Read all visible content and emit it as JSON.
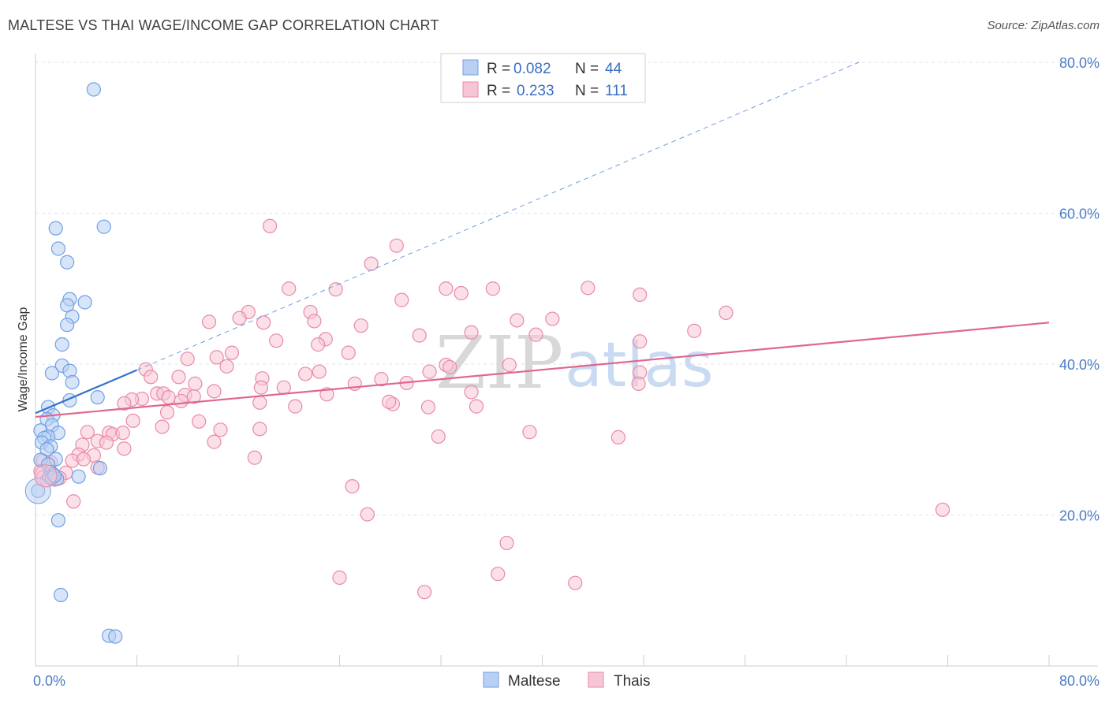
{
  "header": {
    "title": "MALTESE VS THAI WAGE/INCOME GAP CORRELATION CHART",
    "source": "Source: ZipAtlas.com"
  },
  "watermark": {
    "zip": "ZIP",
    "atlas": "atlas"
  },
  "chart_data": {
    "type": "scatter",
    "ylabel": "Wage/Income Gap",
    "xlim": [
      0,
      80
    ],
    "ylim": [
      0,
      80
    ],
    "x_tick_labels": [
      "0.0%",
      "80.0%"
    ],
    "y_ticks": [
      20,
      40,
      60,
      80
    ],
    "y_tick_labels": [
      "20.0%",
      "40.0%",
      "60.0%",
      "80.0%"
    ],
    "grid": true,
    "legend": {
      "placement": "top-center",
      "rows": [
        {
          "r_label": "R =",
          "r_value": "0.082",
          "n_label": "N =",
          "n_value": "44"
        },
        {
          "r_label": "R =",
          "r_value": "0.233",
          "n_label": "N =",
          "n_value": "111"
        }
      ]
    },
    "series": [
      {
        "name": "Maltese",
        "color": "#6fa0e6",
        "fill": "#b8d0f2",
        "trend": {
          "x1": 0,
          "y1": 33.5,
          "x2": 8,
          "y2": 39.2,
          "color": "#3470cc"
        },
        "trend_ext": {
          "x1": 8,
          "y1": 39.2,
          "x2": 65,
          "y2": 80,
          "color": "#6f9fe0"
        },
        "points": [
          [
            4.6,
            76.4
          ],
          [
            1.6,
            58
          ],
          [
            5.4,
            58.2
          ],
          [
            1.8,
            55.3
          ],
          [
            2.5,
            53.5
          ],
          [
            2.7,
            48.6
          ],
          [
            3.9,
            48.2
          ],
          [
            2.5,
            47.8
          ],
          [
            2.9,
            46.3
          ],
          [
            2.5,
            45.2
          ],
          [
            2.1,
            42.6
          ],
          [
            2.1,
            39.8
          ],
          [
            2.7,
            39.1
          ],
          [
            1.3,
            38.8
          ],
          [
            2.9,
            37.6
          ],
          [
            4.9,
            35.6
          ],
          [
            2.7,
            35.2
          ],
          [
            1.0,
            34.3
          ],
          [
            1.4,
            33.2
          ],
          [
            0.9,
            32.7
          ],
          [
            1.3,
            31.9
          ],
          [
            0.4,
            31.2
          ],
          [
            1.8,
            30.9
          ],
          [
            1.0,
            30.4
          ],
          [
            0.7,
            30.2
          ],
          [
            0.5,
            29.6
          ],
          [
            1.2,
            29.1
          ],
          [
            0.9,
            28.7
          ],
          [
            0.4,
            27.3
          ],
          [
            1.6,
            27.4
          ],
          [
            1.0,
            26.7
          ],
          [
            5.1,
            26.2
          ],
          [
            1.2,
            25.7
          ],
          [
            1.4,
            25.4
          ],
          [
            3.4,
            25.1
          ],
          [
            1.1,
            25.0
          ],
          [
            1.3,
            24.9
          ],
          [
            1.7,
            24.8
          ],
          [
            0.2,
            23.2
          ],
          [
            1.8,
            19.3
          ],
          [
            2.0,
            9.4
          ],
          [
            5.8,
            4.0
          ],
          [
            6.3,
            3.9
          ],
          [
            1.5,
            25.2
          ]
        ]
      },
      {
        "name": "Thais",
        "color": "#e88aa8",
        "fill": "#f7c6d6",
        "trend": {
          "x1": 0,
          "y1": 33.0,
          "x2": 80,
          "y2": 45.5,
          "color": "#e06790"
        },
        "points": [
          [
            18.5,
            58.3
          ],
          [
            28.5,
            55.7
          ],
          [
            26.5,
            53.3
          ],
          [
            20.0,
            50.0
          ],
          [
            23.7,
            49.9
          ],
          [
            32.4,
            50.0
          ],
          [
            36.1,
            50.0
          ],
          [
            43.6,
            50.1
          ],
          [
            33.6,
            49.4
          ],
          [
            28.9,
            48.5
          ],
          [
            47.7,
            49.2
          ],
          [
            16.8,
            46.9
          ],
          [
            21.7,
            46.9
          ],
          [
            16.1,
            46.1
          ],
          [
            22.0,
            45.7
          ],
          [
            18.0,
            45.5
          ],
          [
            13.7,
            45.6
          ],
          [
            25.7,
            45.1
          ],
          [
            38.0,
            45.8
          ],
          [
            40.8,
            46.0
          ],
          [
            54.5,
            46.8
          ],
          [
            34.4,
            44.2
          ],
          [
            30.3,
            43.8
          ],
          [
            39.5,
            43.9
          ],
          [
            52.0,
            44.4
          ],
          [
            19.0,
            43.1
          ],
          [
            22.9,
            43.3
          ],
          [
            22.3,
            42.6
          ],
          [
            15.5,
            41.5
          ],
          [
            14.3,
            40.9
          ],
          [
            24.7,
            41.5
          ],
          [
            12.0,
            40.7
          ],
          [
            15.1,
            39.7
          ],
          [
            32.4,
            39.9
          ],
          [
            32.7,
            39.6
          ],
          [
            37.4,
            39.9
          ],
          [
            22.4,
            39.0
          ],
          [
            31.1,
            39.0
          ],
          [
            47.7,
            43.0
          ],
          [
            8.7,
            39.3
          ],
          [
            9.1,
            38.3
          ],
          [
            11.3,
            38.3
          ],
          [
            17.9,
            38.1
          ],
          [
            21.3,
            38.7
          ],
          [
            27.3,
            38.0
          ],
          [
            29.3,
            37.5
          ],
          [
            25.2,
            37.4
          ],
          [
            47.7,
            38.9
          ],
          [
            47.6,
            37.4
          ],
          [
            12.6,
            37.4
          ],
          [
            17.8,
            36.9
          ],
          [
            19.6,
            36.9
          ],
          [
            14.1,
            36.4
          ],
          [
            9.6,
            36.1
          ],
          [
            10.1,
            36.1
          ],
          [
            11.8,
            35.9
          ],
          [
            8.4,
            35.4
          ],
          [
            7.6,
            35.3
          ],
          [
            12.5,
            35.7
          ],
          [
            10.5,
            35.6
          ],
          [
            23.0,
            36.0
          ],
          [
            34.4,
            36.3
          ],
          [
            11.5,
            35.1
          ],
          [
            7.0,
            34.8
          ],
          [
            17.7,
            34.9
          ],
          [
            28.2,
            34.7
          ],
          [
            20.5,
            34.4
          ],
          [
            27.9,
            35.0
          ],
          [
            34.8,
            34.4
          ],
          [
            31.0,
            34.3
          ],
          [
            10.4,
            33.6
          ],
          [
            12.9,
            32.4
          ],
          [
            7.7,
            32.5
          ],
          [
            10.0,
            31.7
          ],
          [
            14.6,
            31.3
          ],
          [
            17.7,
            31.4
          ],
          [
            5.8,
            30.9
          ],
          [
            6.1,
            30.7
          ],
          [
            4.1,
            31.0
          ],
          [
            6.9,
            30.9
          ],
          [
            4.9,
            29.8
          ],
          [
            5.6,
            29.6
          ],
          [
            3.7,
            29.3
          ],
          [
            39.0,
            31.0
          ],
          [
            46.0,
            30.3
          ],
          [
            31.8,
            30.4
          ],
          [
            14.1,
            29.7
          ],
          [
            7.0,
            28.8
          ],
          [
            3.4,
            28.0
          ],
          [
            4.6,
            27.9
          ],
          [
            2.9,
            27.2
          ],
          [
            3.8,
            27.4
          ],
          [
            17.3,
            27.6
          ],
          [
            0.6,
            27.2
          ],
          [
            1.2,
            27.0
          ],
          [
            4.9,
            26.3
          ],
          [
            0.4,
            25.8
          ],
          [
            2.4,
            25.6
          ],
          [
            0.6,
            25.0
          ],
          [
            0.9,
            24.6
          ],
          [
            1.5,
            24.7
          ],
          [
            1.9,
            24.9
          ],
          [
            25.0,
            23.8
          ],
          [
            3.0,
            21.8
          ],
          [
            71.6,
            20.7
          ],
          [
            26.2,
            20.1
          ],
          [
            37.2,
            16.3
          ],
          [
            24.0,
            11.7
          ],
          [
            36.5,
            12.2
          ],
          [
            42.6,
            11.0
          ],
          [
            30.7,
            9.8
          ]
        ]
      }
    ]
  },
  "bottom_legend": [
    "Maltese",
    "Thais"
  ]
}
